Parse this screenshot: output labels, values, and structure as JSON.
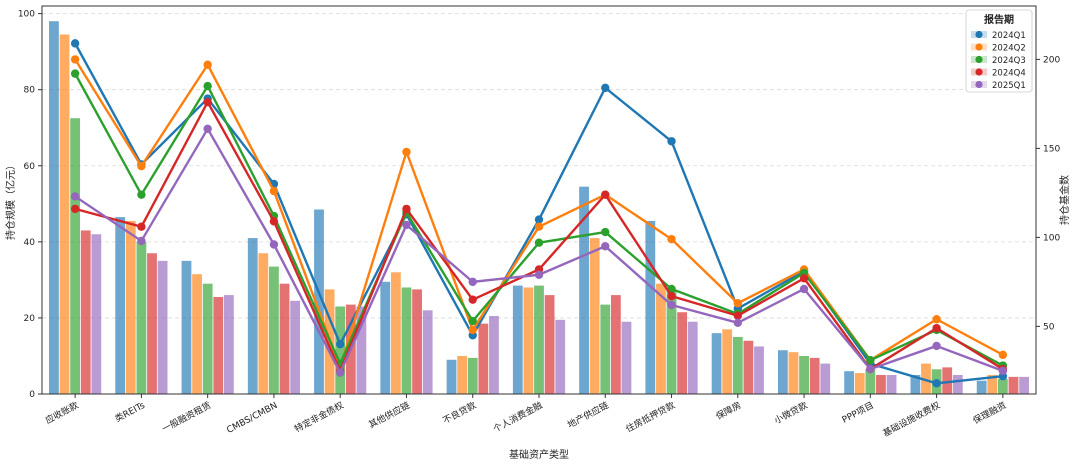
{
  "chart_data": {
    "type": "bar+line",
    "xlabel": "基础资产类型",
    "ylabel_left": "持仓规模（亿元）",
    "ylabel_right": "持仓基金数",
    "ylim_left": [
      0,
      102
    ],
    "ylim_right": [
      12,
      230
    ],
    "yticks_left": [
      0,
      20,
      40,
      60,
      80,
      100
    ],
    "yticks_right": [
      50,
      100,
      150,
      200
    ],
    "grid": true,
    "legend_title": "报告期",
    "legend_position": "top-right",
    "categories": [
      "应收账款",
      "类REITs",
      "一般融资租赁",
      "CMBS/CMBN",
      "特定非金债权",
      "其他供应链",
      "不良贷款",
      "个人消费金融",
      "地产供应链",
      "住房抵押贷款",
      "保障房",
      "小微贷款",
      "PPP项目",
      "基础设施收费权",
      "保理融资"
    ],
    "series": [
      {
        "name": "2024Q1",
        "color": "#1f77b4",
        "bar_values": [
          98,
          46.5,
          35,
          41,
          48.5,
          29.5,
          9,
          28.5,
          54.5,
          45.5,
          16,
          11.5,
          6,
          5,
          3.5
        ],
        "line_values": [
          209,
          141,
          178,
          130,
          40,
          113,
          45,
          110,
          184,
          154,
          60,
          81,
          29,
          18,
          22
        ]
      },
      {
        "name": "2024Q2",
        "color": "#ff7f0e",
        "bar_values": [
          94.5,
          45.5,
          31.5,
          37,
          27.5,
          32,
          10,
          28,
          41,
          29,
          17,
          11,
          5.5,
          8,
          5
        ]
      },
      {
        "name": "2024Q3",
        "color": "#2ca02c",
        "bar_values": [
          72.5,
          40,
          29,
          33.5,
          23,
          28,
          9.5,
          28.5,
          23.5,
          27.5,
          15,
          10,
          6.5,
          6.5,
          4
        ]
      },
      {
        "name": "2024Q4",
        "color": "#d62728",
        "bar_values": [
          43,
          37,
          25.5,
          29,
          23.5,
          27.5,
          18.5,
          26,
          26,
          21.5,
          14,
          9.5,
          5,
          7,
          4.5
        ]
      },
      {
        "name": "2025Q1",
        "color": "#9467bd",
        "bar_values": [
          42,
          35,
          26,
          24.5,
          23,
          22,
          20.5,
          19.5,
          19,
          19,
          12.5,
          8,
          5,
          5,
          4.5
        ]
      }
    ],
    "line_series": [
      {
        "name": "2024Q1",
        "color": "#1f77b4",
        "values": [
          209,
          141,
          178,
          130,
          40,
          113,
          45,
          110,
          184,
          154,
          60,
          81,
          29,
          18,
          22
        ]
      },
      {
        "name": "2024Q2",
        "color": "#ff7f0e",
        "values": [
          200,
          140,
          197,
          126,
          27,
          148,
          48,
          106,
          124,
          99,
          63,
          82,
          31,
          54,
          34
        ]
      },
      {
        "name": "2024Q3",
        "color": "#2ca02c",
        "values": [
          192,
          124,
          185,
          112,
          29,
          114,
          53,
          97,
          103,
          71,
          57,
          80,
          31,
          48,
          28
        ]
      },
      {
        "name": "2024Q4",
        "color": "#d62728",
        "values": [
          116,
          106,
          176,
          109,
          25,
          116,
          65,
          82,
          124,
          67,
          56,
          77,
          26,
          49,
          26
        ]
      },
      {
        "name": "2025Q1",
        "color": "#9467bd",
        "values": [
          123,
          98,
          161,
          96,
          24,
          107,
          75,
          79,
          95,
          62,
          52,
          71,
          26,
          39,
          25
        ]
      }
    ]
  }
}
